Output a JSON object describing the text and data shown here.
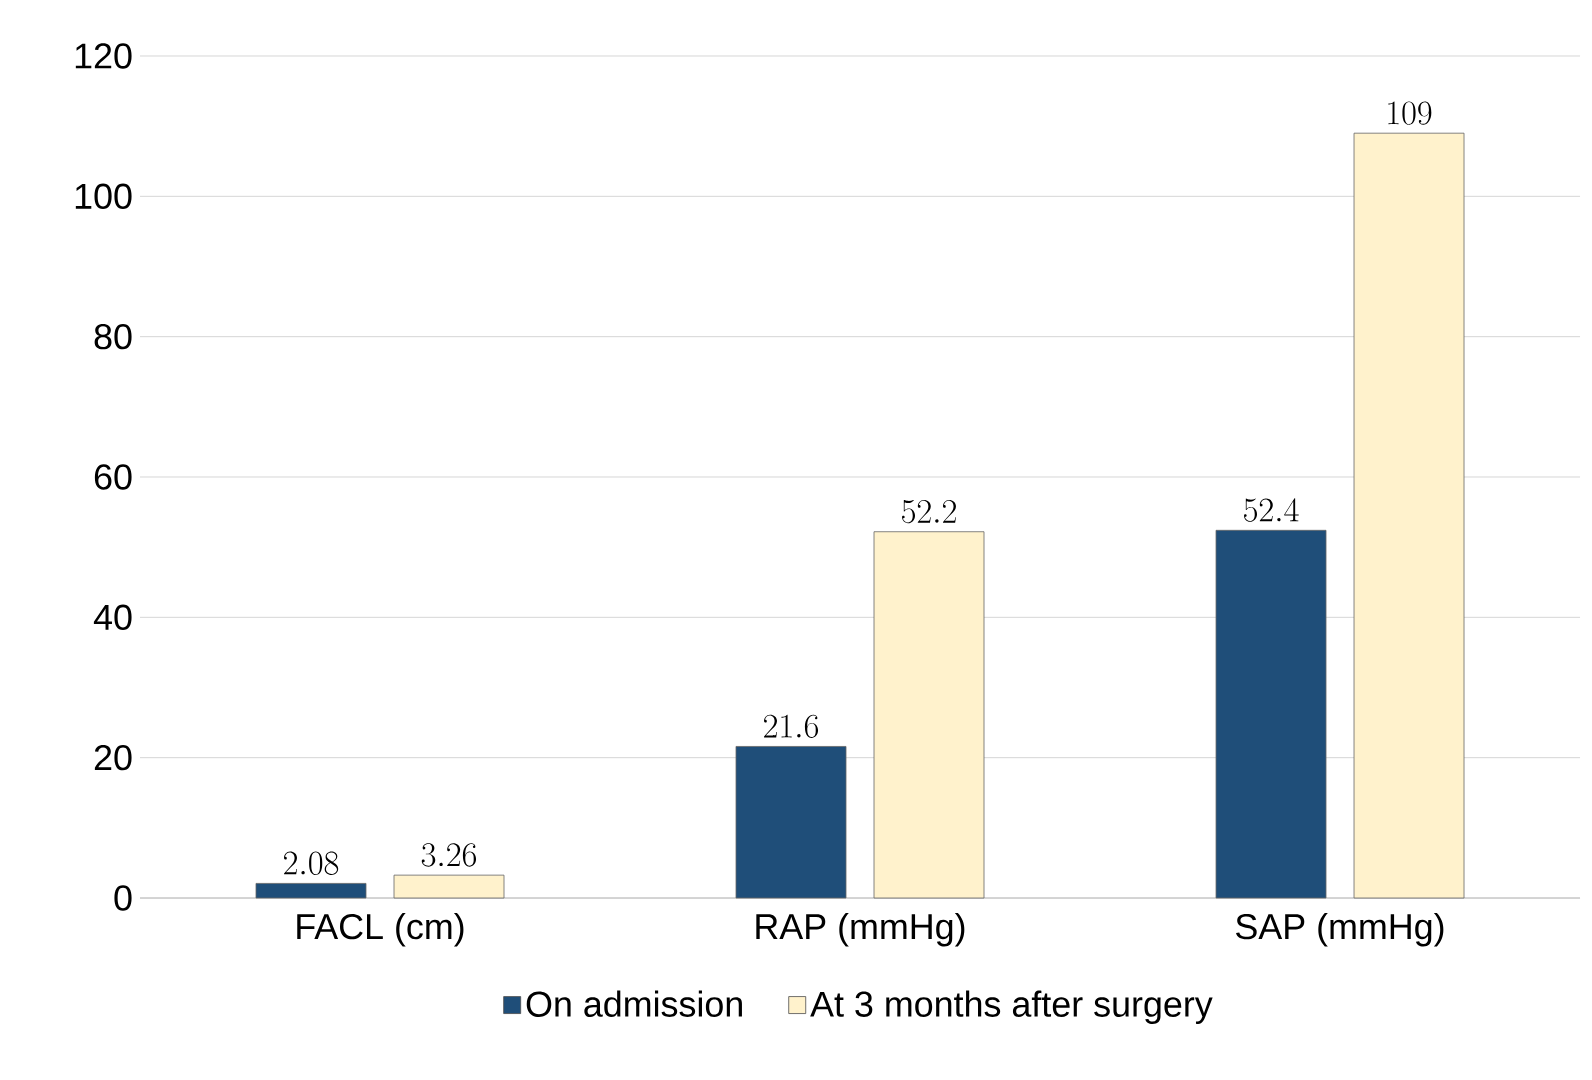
{
  "chart_data": {
    "type": "bar",
    "categories": [
      "FACL (cm)",
      "RAP (mmHg)",
      "SAP (mmHg)"
    ],
    "series": [
      {
        "name": "On admission",
        "color": "#1f4e79",
        "values": [
          2.08,
          21.6,
          52.4
        ]
      },
      {
        "name": "At 3 months after surgery",
        "color": "#fff2cc",
        "values": [
          3.26,
          52.2,
          109
        ]
      }
    ],
    "ylim": [
      0,
      120
    ],
    "yticks": [
      0,
      20,
      40,
      60,
      80,
      100,
      120
    ],
    "grid": "y",
    "legend": "bottom",
    "data_labels": true
  }
}
